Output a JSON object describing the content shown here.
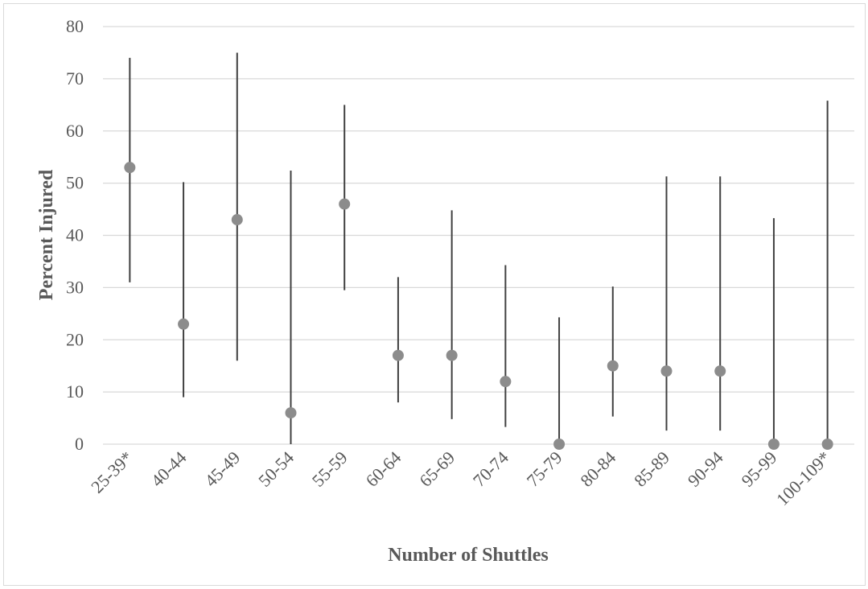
{
  "chart_data": {
    "type": "scatter",
    "title": "",
    "xlabel": "Number of Shuttles",
    "ylabel": "Percent Injured",
    "categories": [
      "25-39*",
      "40-44",
      "45-49",
      "50-54",
      "55-59",
      "60-64",
      "65-69",
      "70-74",
      "75-79",
      "80-84",
      "85-89",
      "90-94",
      "95-99",
      "100-109*"
    ],
    "series": [
      {
        "values": [
          53,
          23,
          43,
          6,
          46,
          17,
          17,
          12,
          0,
          15,
          14,
          14,
          0,
          0
        ],
        "lower": [
          31,
          9,
          16,
          0,
          29.5,
          8,
          4.8,
          3.3,
          0,
          5.3,
          2.6,
          2.6,
          0,
          0
        ],
        "upper": [
          74,
          50.2,
          75,
          52.4,
          65,
          32,
          44.8,
          34.3,
          24.3,
          30.2,
          51.3,
          51.3,
          43.3,
          65.8
        ]
      }
    ],
    "yticks": [
      0,
      10,
      20,
      30,
      40,
      50,
      60,
      70,
      80
    ],
    "ylim": [
      0,
      80
    ],
    "grid": true,
    "colors": {
      "point": "#8c8c8c",
      "errorbar": "#404040",
      "grid": "#d9d9d9",
      "text": "#595959"
    }
  }
}
